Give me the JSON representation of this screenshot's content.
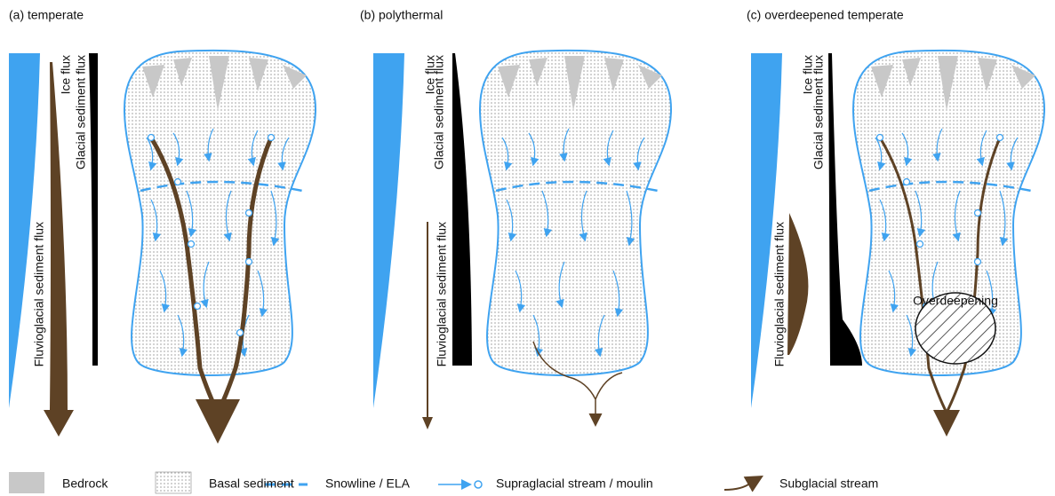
{
  "panels": [
    {
      "title": "(a) temperate",
      "ice_flux": "Ice flux",
      "glacial_sediment_flux": "Glacial sediment flux",
      "fluvioglacial_sediment_flux": "Fluvioglacial sediment flux"
    },
    {
      "title": "(b) polythermal",
      "ice_flux": "Ice flux",
      "glacial_sediment_flux": "Glacial sediment flux",
      "fluvioglacial_sediment_flux": "Fluvioglacial sediment flux"
    },
    {
      "title": "(c) overdeepened temperate",
      "ice_flux": "Ice flux",
      "glacial_sediment_flux": "Glacial sediment flux",
      "fluvioglacial_sediment_flux": "Fluvioglacial sediment flux",
      "annotation": "Overdeepening"
    }
  ],
  "legend": [
    "Bedrock",
    "Basal sediment",
    "Snowline / ELA",
    "Supraglacial stream / moulin",
    "Subglacial stream"
  ]
}
